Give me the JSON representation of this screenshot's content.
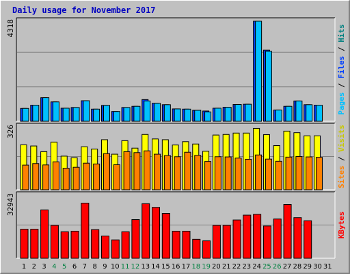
{
  "chart_data": {
    "type": "bar",
    "title": "Daily usage for November 2017",
    "colors": {
      "hits": "#00c0ff",
      "files": "#0040ff",
      "visits": "#ffff00",
      "sites": "#ff8000",
      "kbytes": "#ff0000",
      "weekend": "#008040",
      "title": "#0000c0",
      "text": "#000000",
      "panel": "#c0c0c0",
      "grid": "#808080"
    },
    "days": [
      {
        "label": "1",
        "weekend": false
      },
      {
        "label": "2",
        "weekend": false
      },
      {
        "label": "3",
        "weekend": false
      },
      {
        "label": "4",
        "weekend": true
      },
      {
        "label": "5",
        "weekend": true
      },
      {
        "label": "6",
        "weekend": false
      },
      {
        "label": "7",
        "weekend": false
      },
      {
        "label": "8",
        "weekend": false
      },
      {
        "label": "9",
        "weekend": false
      },
      {
        "label": "10",
        "weekend": false
      },
      {
        "label": "11",
        "weekend": true
      },
      {
        "label": "12",
        "weekend": true
      },
      {
        "label": "13",
        "weekend": false
      },
      {
        "label": "14",
        "weekend": false
      },
      {
        "label": "15",
        "weekend": false
      },
      {
        "label": "16",
        "weekend": false
      },
      {
        "label": "17",
        "weekend": false
      },
      {
        "label": "18",
        "weekend": true
      },
      {
        "label": "19",
        "weekend": true
      },
      {
        "label": "20",
        "weekend": false
      },
      {
        "label": "21",
        "weekend": false
      },
      {
        "label": "22",
        "weekend": false
      },
      {
        "label": "23",
        "weekend": false
      },
      {
        "label": "24",
        "weekend": false
      },
      {
        "label": "25",
        "weekend": true
      },
      {
        "label": "26",
        "weekend": true
      },
      {
        "label": "27",
        "weekend": false
      },
      {
        "label": "28",
        "weekend": false
      },
      {
        "label": "29",
        "weekend": false
      },
      {
        "label": "30",
        "weekend": false
      },
      {
        "label": "31",
        "weekend": false
      }
    ],
    "panels": [
      {
        "key": "hits_files",
        "ymax_label": "4318",
        "ymax": 4318,
        "side_label": [
          {
            "text": "Pages",
            "color": "#00c0ff"
          },
          {
            "text": " / ",
            "color": "#000000"
          },
          {
            "text": "Files",
            "color": "#0040ff"
          },
          {
            "text": " / ",
            "color": "#000000"
          },
          {
            "text": "Hits",
            "color": "#008080"
          }
        ],
        "series": [
          {
            "key": "files",
            "color": "#0040ff",
            "values": [
              550,
              690,
              1010,
              830,
              560,
              590,
              880,
              520,
              680,
              420,
              590,
              640,
              930,
              770,
              710,
              530,
              520,
              470,
              440,
              560,
              600,
              720,
              730,
              4290,
              3050,
              480,
              640,
              870,
              710,
              690,
              0
            ]
          },
          {
            "key": "hits",
            "color": "#00c0ff",
            "values": [
              550,
              690,
              1010,
              830,
              560,
              590,
              880,
              520,
              680,
              420,
              590,
              640,
              870,
              770,
              710,
              530,
              520,
              470,
              400,
              560,
              600,
              720,
              730,
              4290,
              3000,
              480,
              640,
              870,
              710,
              690,
              0
            ]
          }
        ]
      },
      {
        "key": "visits_sites",
        "ymax_label": "326",
        "ymax": 326,
        "side_label": [
          {
            "text": "Sites",
            "color": "#ff8000"
          },
          {
            "text": " / ",
            "color": "#000000"
          },
          {
            "text": "Visits",
            "color": "#c8c800"
          }
        ],
        "series": [
          {
            "key": "visits",
            "color": "#ffff00",
            "values": [
              230,
              224,
              195,
              244,
              172,
              164,
              220,
              208,
              256,
              182,
              251,
              213,
              283,
              260,
              256,
              229,
              246,
              234,
              197,
              280,
              283,
              290,
              290,
              314,
              282,
              226,
              300,
              292,
              276,
              276,
              0
            ]
          },
          {
            "key": "sites",
            "color": "#ff8000",
            "values": [
              126,
              134,
              127,
              143,
              110,
              115,
              136,
              132,
              185,
              128,
              195,
              190,
              199,
              182,
              175,
              169,
              192,
              176,
              145,
              169,
              168,
              162,
              156,
              178,
              157,
              146,
              167,
              170,
              168,
              166,
              0
            ]
          }
        ]
      },
      {
        "key": "kbytes",
        "ymax_label": "32943",
        "ymax": 32943,
        "side_label": [
          {
            "text": "KBytes",
            "color": "#ff0000"
          }
        ],
        "series": [
          {
            "key": "kbytes",
            "color": "#ff0000",
            "values": [
              15000,
              15000,
              25000,
              17000,
              13700,
              14000,
              28500,
              14800,
              11500,
              9500,
              13700,
              20000,
              28200,
              26300,
              23200,
              14000,
              14000,
              9800,
              9000,
              17000,
              17000,
              19800,
              22300,
              22700,
              16700,
              20300,
              27800,
              21000,
              19400,
              0,
              0
            ]
          }
        ]
      }
    ]
  }
}
